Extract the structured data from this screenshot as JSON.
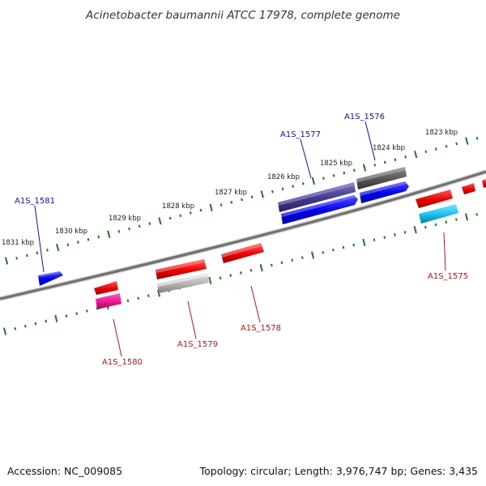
{
  "title": "Acinetobacter baumannii ATCC 17978, complete genome",
  "footer": {
    "accession": "Accession: NC_009085",
    "summary": "Topology: circular; Length: 3,976,747 bp; Genes: 3,435"
  },
  "colors": {
    "forward_label": "#1010c0",
    "reverse_label": "#d01010",
    "tick": "#1a7a1a",
    "backbone": "#7a7a7a"
  },
  "kbp_labels": [
    "1823 kbp",
    "1824 kbp",
    "1825 kbp",
    "1826 kbp",
    "1827 kbp",
    "1828 kbp",
    "1829 kbp",
    "1830 kbp",
    "1831 kbp"
  ],
  "gene_labels": [
    {
      "text": "A1S_1581",
      "strand": "forward"
    },
    {
      "text": "A1S_1577",
      "strand": "forward"
    },
    {
      "text": "A1S_1576",
      "strand": "forward"
    },
    {
      "text": "A1S_1580",
      "strand": "reverse"
    },
    {
      "text": "A1S_1579",
      "strand": "reverse"
    },
    {
      "text": "A1S_1578",
      "strand": "reverse"
    },
    {
      "text": "A1S_1575",
      "strand": "reverse"
    }
  ]
}
